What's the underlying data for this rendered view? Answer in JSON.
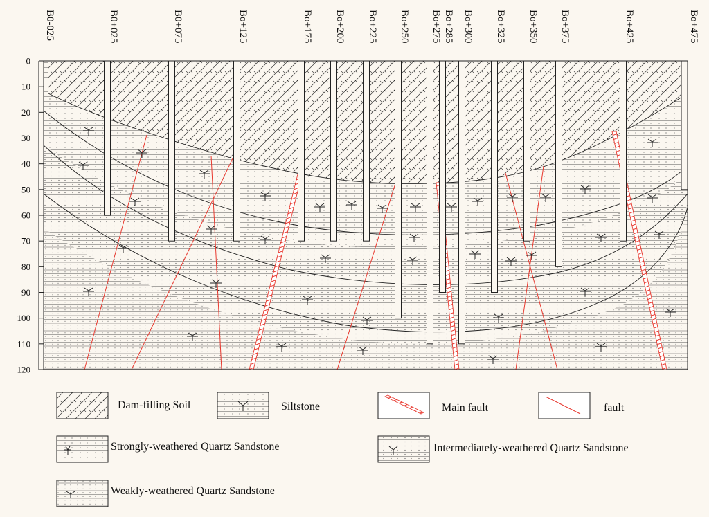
{
  "stations": [
    "B0-025",
    "B0+025",
    "B0+075",
    "Bo+125",
    "Bo+175",
    "Bo+200",
    "Bo+225",
    "Bo+250",
    "Bo+275",
    "Bo+285",
    "Bo+300",
    "Bo+325",
    "Bo+350",
    "Bo+375",
    "Bo+425",
    "Bo+475"
  ],
  "depth_ticks": [
    "0",
    "10",
    "20",
    "30",
    "40",
    "50",
    "60",
    "70",
    "80",
    "90",
    "100",
    "110",
    "120"
  ],
  "boreholes": [
    {
      "station": "B0+025",
      "depth": 60
    },
    {
      "station": "B0+075",
      "depth": 70
    },
    {
      "station": "Bo+125",
      "depth": 70
    },
    {
      "station": "Bo+175",
      "depth": 70
    },
    {
      "station": "Bo+200",
      "depth": 70
    },
    {
      "station": "Bo+225",
      "depth": 70
    },
    {
      "station": "Bo+250",
      "depth": 100
    },
    {
      "station": "Bo+275",
      "depth": 110
    },
    {
      "station": "Bo+285",
      "depth": 90
    },
    {
      "station": "Bo+300",
      "depth": 110
    },
    {
      "station": "Bo+325",
      "depth": 90
    },
    {
      "station": "Bo+350",
      "depth": 70
    },
    {
      "station": "Bo+375",
      "depth": 80
    },
    {
      "station": "Bo+425",
      "depth": 70
    },
    {
      "station": "Bo+475",
      "depth": 50
    }
  ],
  "legend": {
    "dam_filling_soil": "Dam-filling Soil",
    "siltstone": "Siltstone",
    "main_fault": "Main fault",
    "fault": "fault",
    "strongly_weathered": "Strongly-weathered Quartz Sandstone",
    "intermediately_weathered": "Intermediately-weathered Quartz Sandstone",
    "weakly_weathered": "Weakly-weathered Quartz Sandstone"
  },
  "colors": {
    "fault": "#e8382e",
    "background": "#fbf7f0",
    "line": "#222222"
  }
}
